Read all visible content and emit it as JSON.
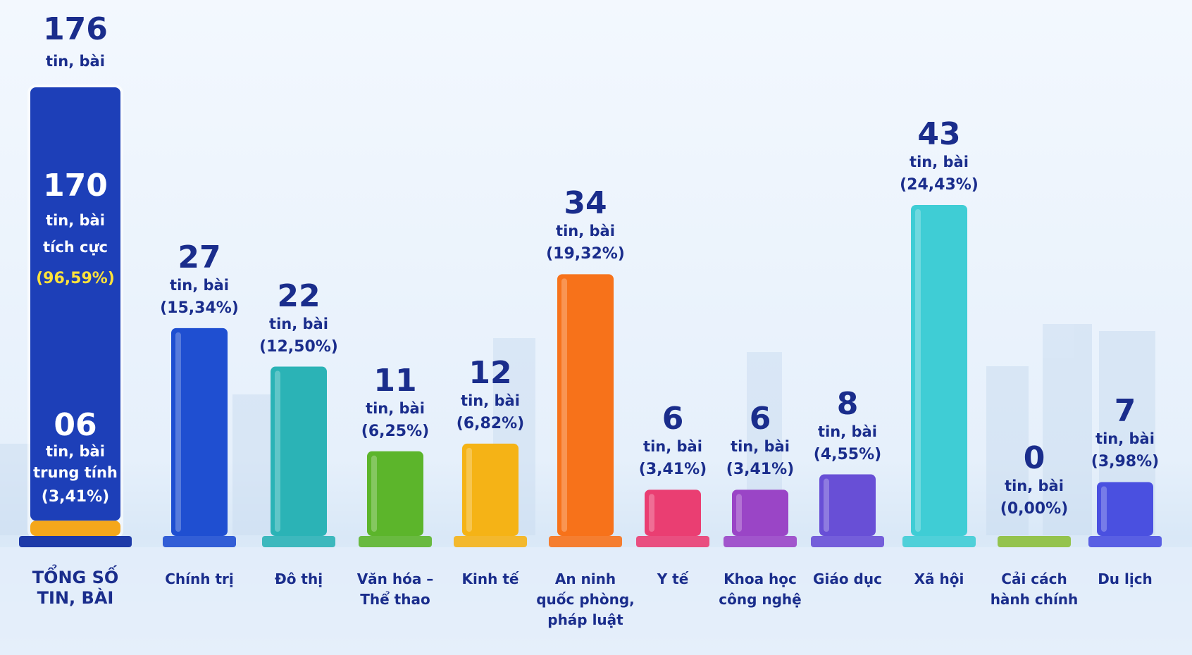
{
  "chart_data": {
    "type": "bar",
    "categories": [
      "Chính trị",
      "Đô thị",
      "Văn hóa –\nThể thao",
      "Kinh tế",
      "An ninh\nquốc phòng,\npháp luật",
      "Y tế",
      "Khoa học\ncông nghệ",
      "Giáo dục",
      "Xã hội",
      "Cải cách\nhành chính",
      "Du lịch"
    ],
    "values": [
      27,
      22,
      11,
      12,
      34,
      6,
      6,
      8,
      43,
      0,
      7
    ],
    "unit_label": "tin, bài",
    "percent_labels": [
      "(15,34%)",
      "(12,50%)",
      "(6,25%)",
      "(6,82%)",
      "(19,32%)",
      "(3,41%)",
      "(3,41%)",
      "(4,55%)",
      "(24,43%)",
      "(0,00%)",
      "(3,98%)"
    ],
    "colors": [
      "#1f4fd1",
      "#2bb3b6",
      "#5cb52b",
      "#f5b316",
      "#f7721a",
      "#ea3e72",
      "#9a45c6",
      "#684fd6",
      "#3fcdd5",
      "#8cbf3a",
      "#4a50e0"
    ],
    "total": {
      "label": "TỔNG SỐ\nTIN, BÀI",
      "value": 176,
      "unit_label": "tin, bài",
      "segments": [
        {
          "name": "tích cực",
          "value": 170,
          "percent_label": "(96,59%)",
          "color": "#1d3fb8"
        },
        {
          "name": "trung tính",
          "value": 6,
          "value_label": "06",
          "percent_label": "(3,41%)",
          "color": "#f5a71b"
        }
      ]
    }
  }
}
